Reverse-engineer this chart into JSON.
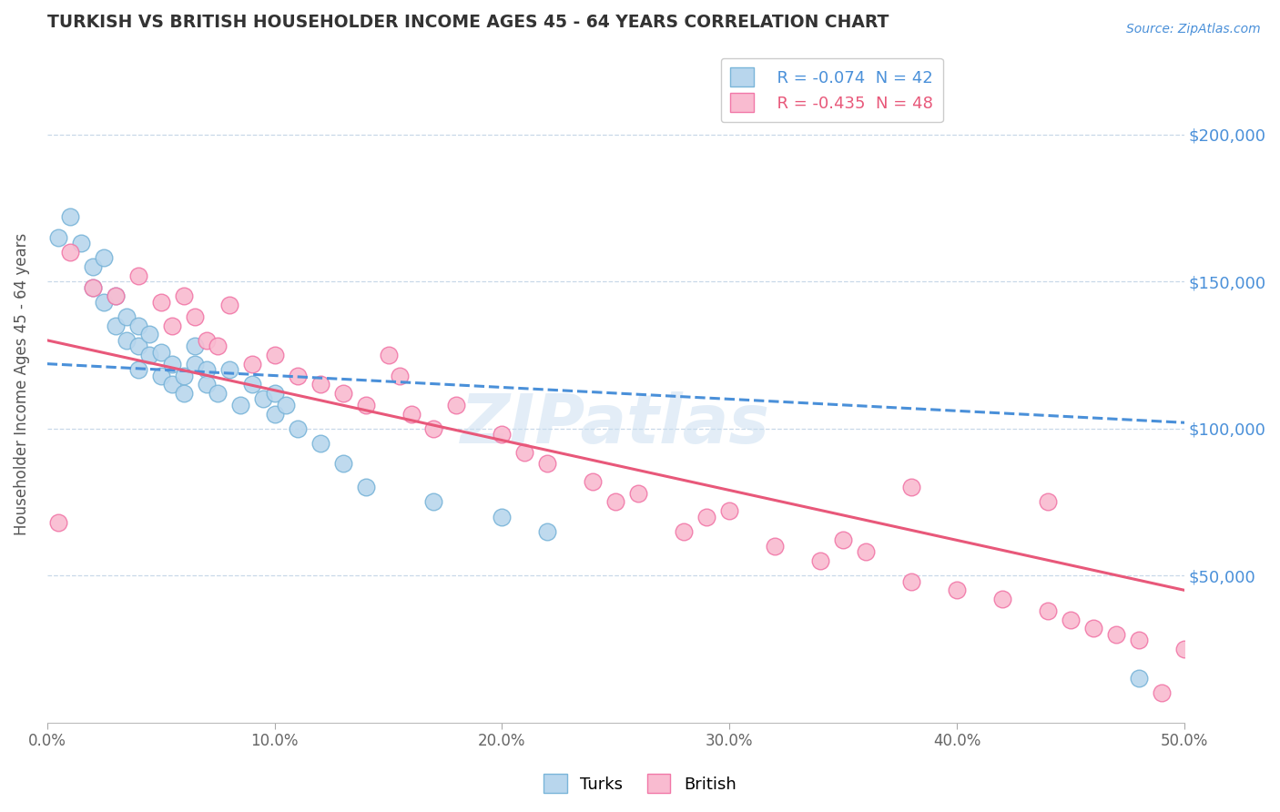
{
  "title": "TURKISH VS BRITISH HOUSEHOLDER INCOME AGES 45 - 64 YEARS CORRELATION CHART",
  "source": "Source: ZipAtlas.com",
  "ylabel": "Householder Income Ages 45 - 64 years",
  "xlim": [
    0.0,
    0.5
  ],
  "ylim": [
    0,
    230000
  ],
  "xticks": [
    0.0,
    0.1,
    0.2,
    0.3,
    0.4,
    0.5
  ],
  "xticklabels": [
    "0.0%",
    "10.0%",
    "20.0%",
    "30.0%",
    "40.0%",
    "50.0%"
  ],
  "yticks_right": [
    50000,
    100000,
    150000,
    200000
  ],
  "ytick_labels_right": [
    "$50,000",
    "$100,000",
    "$150,000",
    "$200,000"
  ],
  "turks_R": -0.074,
  "turks_N": 42,
  "british_R": -0.435,
  "british_N": 48,
  "turks_color": "#7ab5d9",
  "turks_fill": "#b8d6ed",
  "british_color": "#f178a8",
  "british_fill": "#f9bbd0",
  "turks_trend_color": "#4a90d9",
  "british_trend_color": "#e8587a",
  "background_color": "#ffffff",
  "grid_color": "#c8d8e8",
  "turks_x": [
    0.005,
    0.01,
    0.015,
    0.02,
    0.02,
    0.025,
    0.025,
    0.03,
    0.03,
    0.035,
    0.035,
    0.04,
    0.04,
    0.04,
    0.045,
    0.045,
    0.05,
    0.05,
    0.055,
    0.055,
    0.06,
    0.06,
    0.065,
    0.065,
    0.07,
    0.07,
    0.075,
    0.08,
    0.085,
    0.09,
    0.095,
    0.1,
    0.1,
    0.105,
    0.11,
    0.12,
    0.13,
    0.14,
    0.17,
    0.2,
    0.22,
    0.48
  ],
  "turks_y": [
    165000,
    172000,
    163000,
    155000,
    148000,
    143000,
    158000,
    135000,
    145000,
    130000,
    138000,
    128000,
    120000,
    135000,
    125000,
    132000,
    118000,
    126000,
    122000,
    115000,
    118000,
    112000,
    128000,
    122000,
    120000,
    115000,
    112000,
    120000,
    108000,
    115000,
    110000,
    105000,
    112000,
    108000,
    100000,
    95000,
    88000,
    80000,
    75000,
    70000,
    65000,
    15000
  ],
  "british_x": [
    0.005,
    0.01,
    0.02,
    0.03,
    0.04,
    0.05,
    0.055,
    0.06,
    0.065,
    0.07,
    0.075,
    0.08,
    0.09,
    0.1,
    0.11,
    0.12,
    0.13,
    0.14,
    0.15,
    0.155,
    0.16,
    0.17,
    0.18,
    0.2,
    0.21,
    0.22,
    0.24,
    0.25,
    0.26,
    0.28,
    0.29,
    0.3,
    0.32,
    0.34,
    0.35,
    0.36,
    0.38,
    0.4,
    0.42,
    0.44,
    0.45,
    0.46,
    0.47,
    0.48,
    0.49,
    0.5,
    0.44,
    0.38
  ],
  "british_y": [
    68000,
    160000,
    148000,
    145000,
    152000,
    143000,
    135000,
    145000,
    138000,
    130000,
    128000,
    142000,
    122000,
    125000,
    118000,
    115000,
    112000,
    108000,
    125000,
    118000,
    105000,
    100000,
    108000,
    98000,
    92000,
    88000,
    82000,
    75000,
    78000,
    65000,
    70000,
    72000,
    60000,
    55000,
    62000,
    58000,
    48000,
    45000,
    42000,
    38000,
    35000,
    32000,
    30000,
    28000,
    10000,
    25000,
    75000,
    80000
  ]
}
